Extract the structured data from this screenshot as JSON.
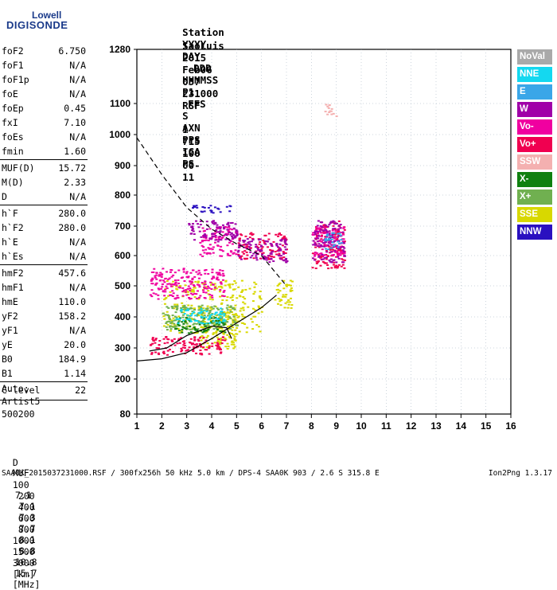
{
  "logo": {
    "line1": "Lowell",
    "line2": "DIGISONDE"
  },
  "header": {
    "labels": [
      "Station",
      "YYYY",
      "DAY",
      "DDD",
      "HHMMSS",
      "P1",
      "FFS",
      "S",
      "AXN",
      "PPS",
      "IGA",
      "PS"
    ],
    "values": [
      "SaoLuis",
      "2015",
      "Feb06",
      "037",
      "231000",
      "RSF",
      "",
      "1",
      "715",
      "100",
      "00-",
      "11"
    ]
  },
  "params": [
    {
      "k": "foF2",
      "v": "6.750"
    },
    {
      "k": "foF1",
      "v": "N/A"
    },
    {
      "k": "foF1p",
      "v": "N/A"
    },
    {
      "k": "foE",
      "v": "N/A"
    },
    {
      "k": "foEp",
      "v": "0.45"
    },
    {
      "k": "fxI",
      "v": "7.10"
    },
    {
      "k": "foEs",
      "v": "N/A"
    },
    {
      "k": "fmin",
      "v": "1.60"
    },
    {
      "k": "MUF(D)",
      "v": "15.72"
    },
    {
      "k": "M(D)",
      "v": "2.33"
    },
    {
      "k": "D",
      "v": "N/A"
    },
    {
      "k": "h`F",
      "v": "280.0"
    },
    {
      "k": "h`F2",
      "v": "280.0"
    },
    {
      "k": "h`E",
      "v": "N/A"
    },
    {
      "k": "h`Es",
      "v": "N/A"
    },
    {
      "k": "hmF2",
      "v": "457.6"
    },
    {
      "k": "hmF1",
      "v": "N/A"
    },
    {
      "k": "hmE",
      "v": "110.0"
    },
    {
      "k": "yF2",
      "v": "158.2"
    },
    {
      "k": "yF1",
      "v": "N/A"
    },
    {
      "k": "yE",
      "v": "20.0"
    },
    {
      "k": "B0",
      "v": "184.9"
    },
    {
      "k": "B1",
      "v": "1.14"
    },
    {
      "k": "C-level",
      "v": "22"
    }
  ],
  "auto": {
    "label": "Auto:",
    "artist": "Artist5",
    "version": "500200"
  },
  "legend": [
    {
      "name": "NoVal",
      "color": "#a9a9a9"
    },
    {
      "name": "NNE",
      "color": "#14d8f0"
    },
    {
      "name": "E",
      "color": "#3aa6e8"
    },
    {
      "name": "W",
      "color": "#a000a8"
    },
    {
      "name": "Vo-",
      "color": "#f000a0"
    },
    {
      "name": "Vo+",
      "color": "#f00050"
    },
    {
      "name": "SSW",
      "color": "#f4b0b0"
    },
    {
      "name": "X-",
      "color": "#108010"
    },
    {
      "name": "X+",
      "color": "#70b050"
    },
    {
      "name": "SSE",
      "color": "#d8d800"
    },
    {
      "name": "NNW",
      "color": "#2a10c0"
    }
  ],
  "muf_table": {
    "d_label": "D",
    "d_values": [
      "100",
      "200",
      "400",
      "600",
      "800",
      "1000",
      "1500",
      "3000"
    ],
    "d_unit": "[km]",
    "muf_label": "MUF",
    "muf_values": [
      "7.1",
      "7.1",
      "7.3",
      "7.7",
      "8.1",
      "8.8",
      "10.8",
      "15.7"
    ],
    "muf_unit": "[MHz]"
  },
  "footer_left": "SAA0K_2015037231000.RSF / 300fx256h 50 kHz 5.0 km / DPS-4 SAA0K 903 / 2.6 S 315.8 E",
  "footer_right": "Ion2Png 1.3.17",
  "chart_data": {
    "type": "scatter",
    "x_ticks": [
      1,
      2,
      3,
      4,
      5,
      6,
      7,
      8,
      9,
      10,
      11,
      12,
      13,
      14,
      15,
      16
    ],
    "y_ticks": [
      80,
      200,
      300,
      400,
      500,
      600,
      700,
      800,
      900,
      1000,
      1100,
      1280
    ],
    "xlim": [
      1,
      16
    ],
    "ylim": [
      80,
      1280
    ],
    "y_scale": "nonlinear (ionogram height scale)",
    "grid": true,
    "legend_position": "right",
    "series": [
      {
        "name": "SSE",
        "color": "#d8d800",
        "clusters": [
          [
            2.0,
            6.0,
            350,
            520
          ],
          [
            6.5,
            7.2,
            430,
            520
          ],
          [
            3.5,
            5.0,
            300,
            420
          ]
        ]
      },
      {
        "name": "Vo+",
        "color": "#f00050",
        "clusters": [
          [
            1.5,
            4.5,
            280,
            340
          ],
          [
            5.0,
            7.0,
            590,
            680
          ],
          [
            8.0,
            9.3,
            560,
            720
          ]
        ]
      },
      {
        "name": "Vo-",
        "color": "#f000a0",
        "clusters": [
          [
            1.5,
            4.5,
            460,
            560
          ],
          [
            3.5,
            5.0,
            600,
            700
          ],
          [
            8.0,
            9.3,
            600,
            700
          ]
        ]
      },
      {
        "name": "W",
        "color": "#a000a8",
        "clusters": [
          [
            3.0,
            5.0,
            650,
            720
          ],
          [
            5.0,
            7.0,
            580,
            660
          ],
          [
            8.0,
            9.3,
            580,
            720
          ]
        ]
      },
      {
        "name": "NNW",
        "color": "#2a10c0",
        "clusters": [
          [
            3.2,
            4.8,
            745,
            770
          ]
        ]
      },
      {
        "name": "X+",
        "color": "#70b050",
        "clusters": [
          [
            2.0,
            5.0,
            360,
            440
          ]
        ]
      },
      {
        "name": "X-",
        "color": "#108010",
        "clusters": [
          [
            2.5,
            4.5,
            350,
            400
          ]
        ]
      },
      {
        "name": "NNE",
        "color": "#14d8f0",
        "clusters": [
          [
            2.5,
            4.5,
            380,
            430
          ]
        ]
      },
      {
        "name": "E",
        "color": "#3aa6e8",
        "clusters": [
          [
            8.5,
            9.2,
            620,
            680
          ]
        ]
      },
      {
        "name": "SSW",
        "color": "#f4b0b0",
        "clusters": [
          [
            8.5,
            9.0,
            1060,
            1100
          ]
        ]
      }
    ],
    "curves": [
      {
        "name": "dashed-curve",
        "style": "dashed",
        "points": [
          [
            1.0,
            990
          ],
          [
            2.0,
            870
          ],
          [
            3.0,
            760
          ],
          [
            4.0,
            690
          ],
          [
            5.0,
            640
          ],
          [
            6.0,
            600
          ],
          [
            7.0,
            500
          ]
        ]
      },
      {
        "name": "solid-trace",
        "style": "solid",
        "points": [
          [
            1.0,
            258
          ],
          [
            2.0,
            265
          ],
          [
            3.0,
            285
          ],
          [
            4.0,
            330
          ],
          [
            5.0,
            380
          ],
          [
            6.0,
            430
          ],
          [
            6.6,
            470
          ]
        ]
      },
      {
        "name": "lower-trace",
        "style": "solid",
        "points": [
          [
            1.5,
            290
          ],
          [
            2.2,
            300
          ],
          [
            3.0,
            340
          ],
          [
            4.0,
            370
          ],
          [
            4.6,
            365
          ],
          [
            4.8,
            330
          ]
        ]
      }
    ]
  }
}
